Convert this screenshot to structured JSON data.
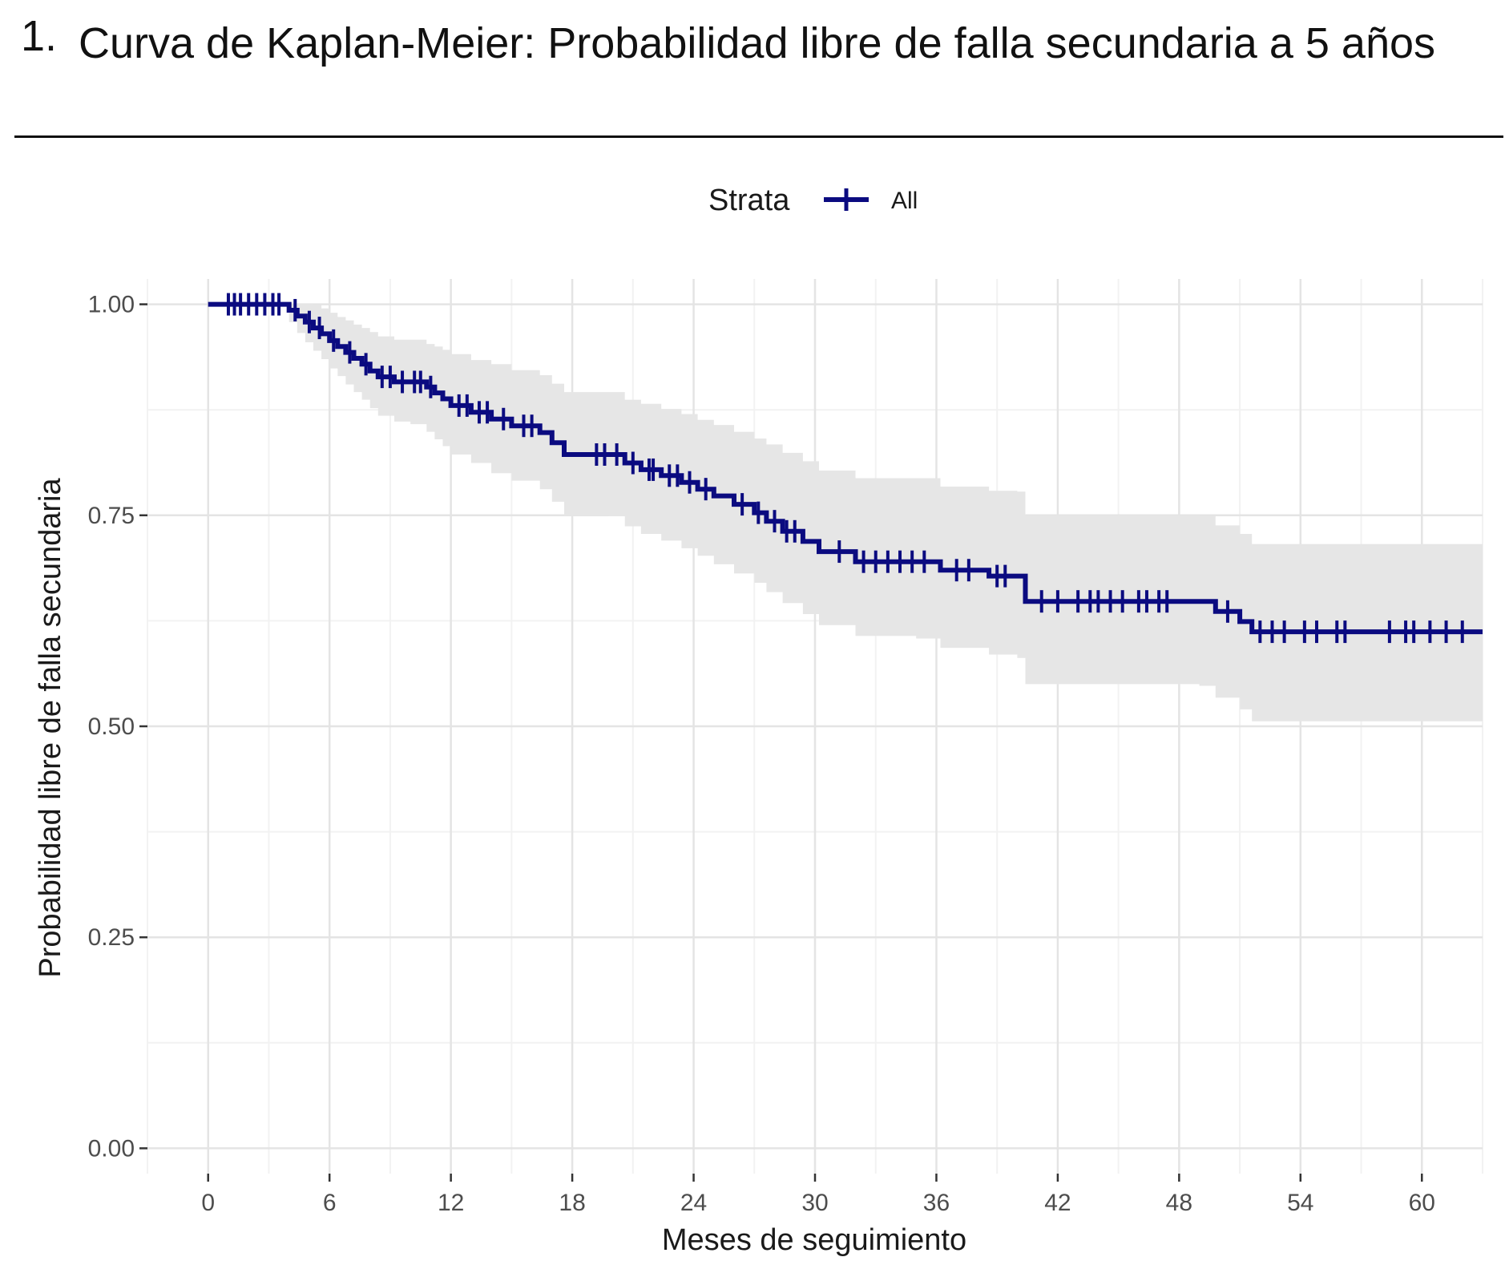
{
  "heading": {
    "number": "1.",
    "text": "Curva de Kaplan-Meier: Probabilidad libre de falla secundaria a 5 años"
  },
  "colors": {
    "curve": "#0b0b80",
    "ci_band": "#e6e6e6",
    "grid_major": "#e4e4e4",
    "grid_minor": "#f2f2f2"
  },
  "chart_data": {
    "type": "line",
    "subtype": "kaplan-meier step curve with censoring marks and confidence band",
    "title": "",
    "xlabel": "Meses de seguimiento",
    "ylabel": "Probabilidad libre de falla secundaria",
    "xlim": [
      -3,
      63
    ],
    "ylim": [
      -0.03,
      1.03
    ],
    "x_ticks": [
      0,
      6,
      12,
      18,
      24,
      30,
      36,
      42,
      48,
      54,
      60
    ],
    "x_tick_labels": [
      "0",
      "6",
      "12",
      "18",
      "24",
      "30",
      "36",
      "42",
      "48",
      "54",
      "60"
    ],
    "y_ticks": [
      0,
      0.25,
      0.5,
      0.75,
      1.0
    ],
    "y_tick_labels": [
      "0.00",
      "0.25",
      "0.50",
      "0.75",
      "1.00"
    ],
    "grid": true,
    "legend": {
      "title": "Strata",
      "entries": [
        "All"
      ],
      "position": "top"
    },
    "series": [
      {
        "name": "All",
        "step_times": [
          0,
          3.6,
          4.0,
          4.4,
          4.8,
          5.2,
          5.6,
          6.0,
          6.4,
          6.8,
          7.2,
          7.6,
          8.0,
          8.4,
          8.8,
          9.2,
          10.0,
          10.8,
          11.2,
          11.6,
          12.0,
          13.0,
          14.0,
          15.0,
          16.4,
          17.0,
          17.6,
          19.8,
          20.6,
          21.4,
          22.4,
          23.4,
          24.2,
          25.0,
          26.0,
          27.0,
          27.6,
          28.4,
          29.4,
          30.2,
          32.0,
          35.0,
          36.2,
          38.6,
          40.0,
          40.4,
          49.0,
          49.8,
          51.0,
          51.6,
          63.0
        ],
        "survival": [
          1.0,
          1.0,
          0.993,
          0.986,
          0.979,
          0.972,
          0.965,
          0.957,
          0.95,
          0.943,
          0.936,
          0.929,
          0.921,
          0.914,
          0.914,
          0.908,
          0.908,
          0.902,
          0.895,
          0.888,
          0.88,
          0.872,
          0.864,
          0.856,
          0.848,
          0.836,
          0.822,
          0.822,
          0.812,
          0.804,
          0.797,
          0.789,
          0.781,
          0.773,
          0.763,
          0.753,
          0.743,
          0.731,
          0.719,
          0.707,
          0.695,
          0.695,
          0.685,
          0.678,
          0.678,
          0.648,
          0.648,
          0.636,
          0.624,
          0.612,
          0.612
        ],
        "ci_lower": [
          1.0,
          1.0,
          0.979,
          0.966,
          0.955,
          0.945,
          0.935,
          0.924,
          0.915,
          0.905,
          0.896,
          0.887,
          0.877,
          0.868,
          0.868,
          0.861,
          0.858,
          0.849,
          0.84,
          0.832,
          0.822,
          0.812,
          0.8,
          0.791,
          0.781,
          0.766,
          0.75,
          0.749,
          0.737,
          0.728,
          0.72,
          0.711,
          0.702,
          0.692,
          0.681,
          0.67,
          0.659,
          0.646,
          0.633,
          0.62,
          0.607,
          0.604,
          0.593,
          0.585,
          0.581,
          0.55,
          0.548,
          0.534,
          0.52,
          0.506,
          0.506
        ],
        "ci_upper": [
          1.0,
          1.0,
          1.0,
          1.0,
          1.0,
          0.999,
          0.995,
          0.99,
          0.985,
          0.981,
          0.976,
          0.972,
          0.967,
          0.962,
          0.962,
          0.958,
          0.958,
          0.953,
          0.95,
          0.946,
          0.941,
          0.934,
          0.929,
          0.922,
          0.916,
          0.906,
          0.896,
          0.896,
          0.887,
          0.882,
          0.876,
          0.87,
          0.863,
          0.857,
          0.849,
          0.841,
          0.834,
          0.824,
          0.814,
          0.803,
          0.794,
          0.794,
          0.784,
          0.779,
          0.778,
          0.75,
          0.749,
          0.738,
          0.728,
          0.716,
          0.716
        ],
        "censor_times": [
          1.0,
          1.3,
          1.6,
          2.0,
          2.4,
          2.8,
          3.2,
          3.5,
          4.3,
          5.0,
          5.5,
          6.2,
          7.0,
          7.8,
          8.6,
          9.0,
          9.6,
          10.2,
          10.5,
          11.0,
          12.4,
          12.8,
          13.4,
          13.8,
          14.6,
          15.6,
          16.0,
          19.2,
          19.6,
          20.2,
          21.0,
          21.8,
          22.0,
          22.8,
          23.2,
          23.8,
          24.6,
          26.4,
          27.2,
          28.0,
          28.6,
          29.0,
          31.2,
          32.4,
          33.0,
          33.6,
          34.2,
          34.8,
          35.4,
          37.0,
          37.6,
          39.0,
          39.4,
          41.2,
          42.0,
          43.0,
          43.6,
          44.0,
          44.6,
          45.2,
          46.0,
          46.4,
          47.0,
          47.4,
          50.4,
          52.0,
          52.6,
          53.2,
          54.2,
          54.8,
          55.8,
          56.2,
          58.4,
          59.2,
          59.6,
          60.4,
          61.2,
          62.0
        ]
      }
    ]
  }
}
